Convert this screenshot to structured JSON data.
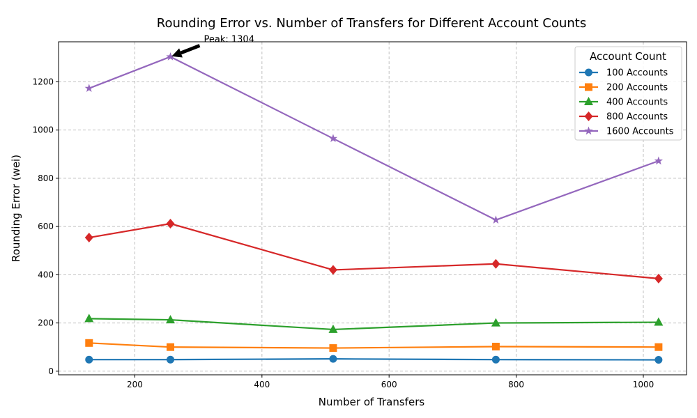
{
  "chart_data": {
    "type": "line",
    "title": "Rounding Error vs. Number of Transfers for Different Account Counts",
    "xlabel": "Number of Transfers",
    "ylabel": "Rounding Error (wei)",
    "xlim": [
      80,
      1068
    ],
    "ylim": [
      -15,
      1366
    ],
    "xticks": [
      200,
      400,
      600,
      800,
      1000
    ],
    "yticks": [
      0,
      200,
      400,
      600,
      800,
      1000,
      1200
    ],
    "grid": true,
    "legend": {
      "title": "Account Count",
      "placement": "top-right"
    },
    "x": [
      128,
      256,
      512,
      768,
      1024
    ],
    "series": [
      {
        "name": "100 Accounts",
        "color": "#1f77b4",
        "marker": "circle",
        "values": [
          48,
          48,
          51,
          48,
          47
        ]
      },
      {
        "name": "200 Accounts",
        "color": "#ff7f0e",
        "marker": "square",
        "values": [
          117,
          100,
          96,
          102,
          100
        ]
      },
      {
        "name": "400 Accounts",
        "color": "#2ca02c",
        "marker": "triangle",
        "values": [
          218,
          213,
          173,
          200,
          203
        ]
      },
      {
        "name": "800 Accounts",
        "color": "#d62728",
        "marker": "diamond",
        "values": [
          554,
          612,
          420,
          445,
          384
        ]
      },
      {
        "name": "1600 Accounts",
        "color": "#9467bd",
        "marker": "star",
        "values": [
          1173,
          1304,
          965,
          627,
          872
        ]
      }
    ],
    "annotations": [
      {
        "text": "Peak: 1304",
        "x": 256,
        "y": 1304
      }
    ]
  }
}
